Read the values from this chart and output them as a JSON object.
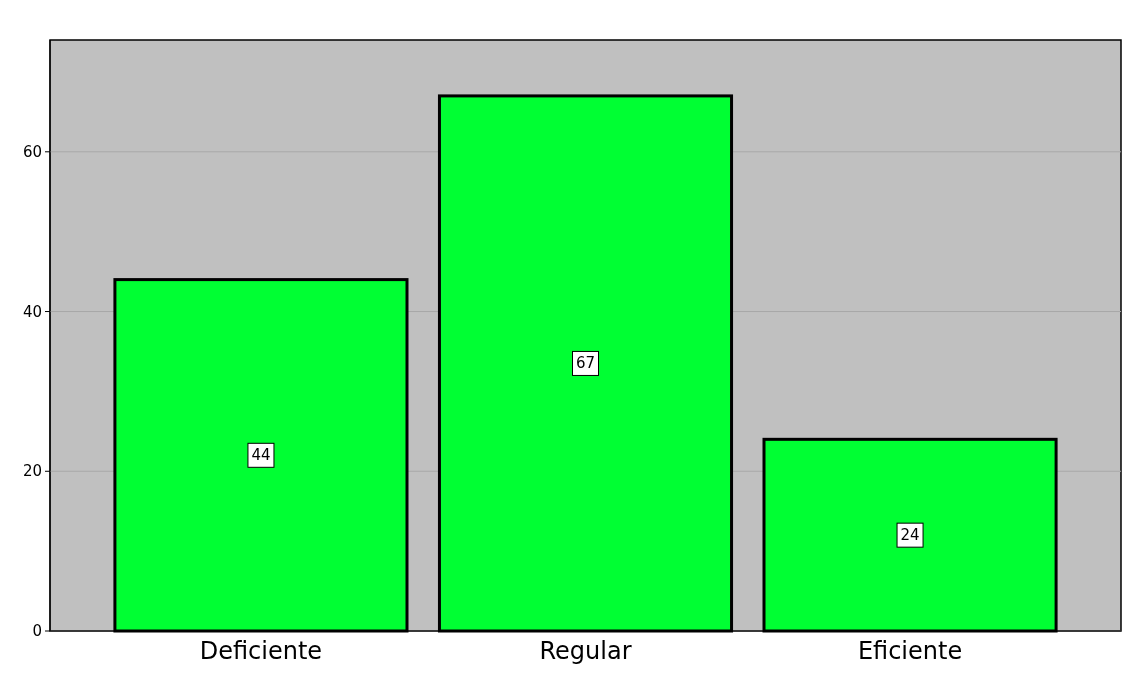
{
  "chart_data": {
    "type": "bar",
    "categories": [
      "Deficiente",
      "Regular",
      "Eficiente"
    ],
    "values": [
      44,
      67,
      24
    ],
    "color": "#00ff33",
    "ylim": [
      0,
      74
    ],
    "yticks": [
      0,
      20,
      40,
      60
    ],
    "grid": "y",
    "data_labels": true
  }
}
